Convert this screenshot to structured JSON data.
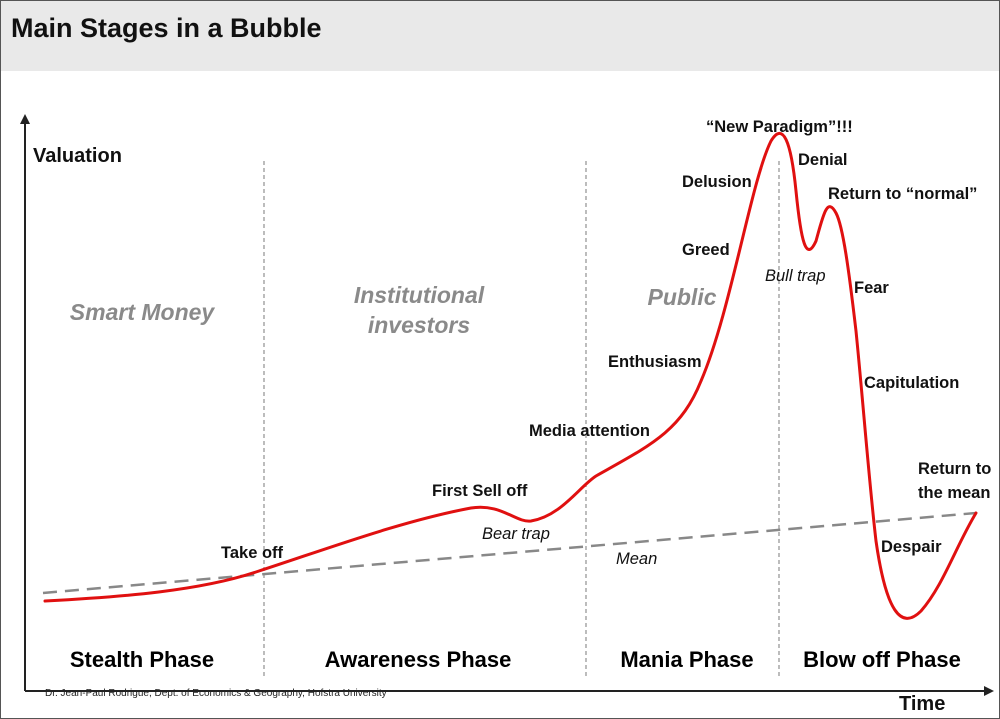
{
  "title": "Main Stages in a Bubble",
  "axes": {
    "y_label": "Valuation",
    "x_label": "Time"
  },
  "phases": [
    "Stealth Phase",
    "Awareness Phase",
    "Mania Phase",
    "Blow off Phase"
  ],
  "groups": {
    "smart_money": "Smart Money",
    "institutional_line1": "Institutional",
    "institutional_line2": "investors",
    "public": "Public"
  },
  "stages": {
    "take_off": "Take off",
    "first_sell_off": "First Sell off",
    "bear_trap": "Bear trap",
    "mean": "Mean",
    "media_attention": "Media attention",
    "enthusiasm": "Enthusiasm",
    "greed": "Greed",
    "delusion": "Delusion",
    "new_paradigm": "“New Paradigm”!!!",
    "denial": "Denial",
    "bull_trap": "Bull trap",
    "return_to_normal": "Return to “normal”",
    "fear": "Fear",
    "capitulation": "Capitulation",
    "return_to_mean_line1": "Return to",
    "return_to_mean_line2": "the mean",
    "despair": "Despair"
  },
  "credit": "Dr. Jean-Paul Rodrigue, Dept. of Economics & Geography, Hofstra University",
  "colors": {
    "curve": "#e01010",
    "mean_line": "#888888",
    "divider": "#999999",
    "group_text": "#8a8a8a"
  }
}
